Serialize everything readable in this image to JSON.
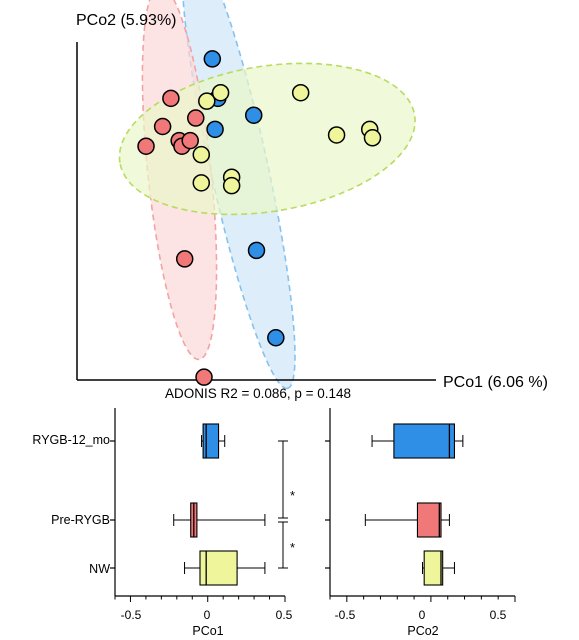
{
  "colors": {
    "RYGB-12_mo": "#2f8fe6",
    "Pre-RYGB": "#f07878",
    "NW": "#eef59a",
    "ellipse_fill_RYGB-12_mo": "#cfe6f7",
    "ellipse_fill_Pre-RYGB": "#fcd9d9",
    "ellipse_fill_NW": "#e9f6c9",
    "ellipse_stroke_RYGB-12_mo": "#86c2ee",
    "ellipse_stroke_Pre-RYGB": "#f2a3a3",
    "ellipse_stroke_NW": "#b8dc5e"
  },
  "chart_data": [
    {
      "type": "scatter",
      "xlabel": "PCo1 (6.06 %)",
      "ylabel": "PCo2 (5.93%)",
      "annotation": "ADONIS R2 = 0.086, p = 0.148",
      "xlim": [
        -0.55,
        0.75
      ],
      "ylim": [
        -0.62,
        0.58
      ],
      "confidence_ellipses": true,
      "series": [
        {
          "name": "RYGB-12_mo",
          "points": [
            [
              -0.06,
              0.52
            ],
            [
              -0.04,
              0.38
            ],
            [
              0.09,
              0.32
            ],
            [
              -0.05,
              0.27
            ],
            [
              0.1,
              -0.16
            ],
            [
              0.17,
              -0.47
            ]
          ]
        },
        {
          "name": "Pre-RYGB",
          "points": [
            [
              -0.21,
              0.38
            ],
            [
              -0.24,
              0.28
            ],
            [
              -0.12,
              0.31
            ],
            [
              -0.18,
              0.23
            ],
            [
              -0.17,
              0.21
            ],
            [
              -0.14,
              0.23
            ],
            [
              -0.3,
              0.21
            ],
            [
              -0.16,
              -0.19
            ],
            [
              -0.09,
              -0.61
            ]
          ]
        },
        {
          "name": "NW",
          "points": [
            [
              -0.08,
              0.37
            ],
            [
              -0.03,
              0.4
            ],
            [
              0.26,
              0.4
            ],
            [
              0.39,
              0.25
            ],
            [
              0.51,
              0.27
            ],
            [
              0.52,
              0.24
            ],
            [
              -0.1,
              0.18
            ],
            [
              0.01,
              0.1
            ],
            [
              0.01,
              0.07
            ],
            [
              -0.1,
              0.08
            ]
          ]
        }
      ]
    },
    {
      "type": "box",
      "xlabel": "PCo1",
      "xlim": [
        -0.6,
        0.5
      ],
      "xticks": [
        "-0.5",
        "0",
        "0.5"
      ],
      "categories": [
        "RYGB-12_mo",
        "Pre-RYGB",
        "NW"
      ],
      "boxes": [
        {
          "name": "RYGB-12_mo",
          "min": -0.04,
          "q1": -0.03,
          "median": -0.01,
          "q3": 0.07,
          "max": 0.11
        },
        {
          "name": "Pre-RYGB",
          "min": -0.22,
          "q1": -0.11,
          "median": -0.09,
          "q3": -0.07,
          "max": 0.37
        },
        {
          "name": "NW",
          "min": -0.15,
          "q1": -0.05,
          "median": -0.01,
          "q3": 0.19,
          "max": 0.37
        }
      ],
      "significance": [
        {
          "pair": [
            "RYGB-12_mo",
            "Pre-RYGB"
          ],
          "label": "*"
        },
        {
          "pair": [
            "Pre-RYGB",
            "NW"
          ],
          "label": "*"
        }
      ]
    },
    {
      "type": "box",
      "xlabel": "PCo2",
      "xlim": [
        -0.6,
        0.5
      ],
      "xticks": [
        "-0.5",
        "0",
        "0.5"
      ],
      "categories": [
        "RYGB-12_mo",
        "Pre-RYGB",
        "NW"
      ],
      "boxes": [
        {
          "name": "RYGB-12_mo",
          "min": -0.35,
          "q1": -0.22,
          "median": 0.11,
          "q3": 0.14,
          "max": 0.19
        },
        {
          "name": "Pre-RYGB",
          "min": -0.39,
          "q1": -0.08,
          "median": 0.05,
          "q3": 0.06,
          "max": 0.11
        },
        {
          "name": "NW",
          "min": -0.05,
          "q1": -0.04,
          "median": 0.06,
          "q3": 0.07,
          "max": 0.14
        }
      ]
    }
  ]
}
